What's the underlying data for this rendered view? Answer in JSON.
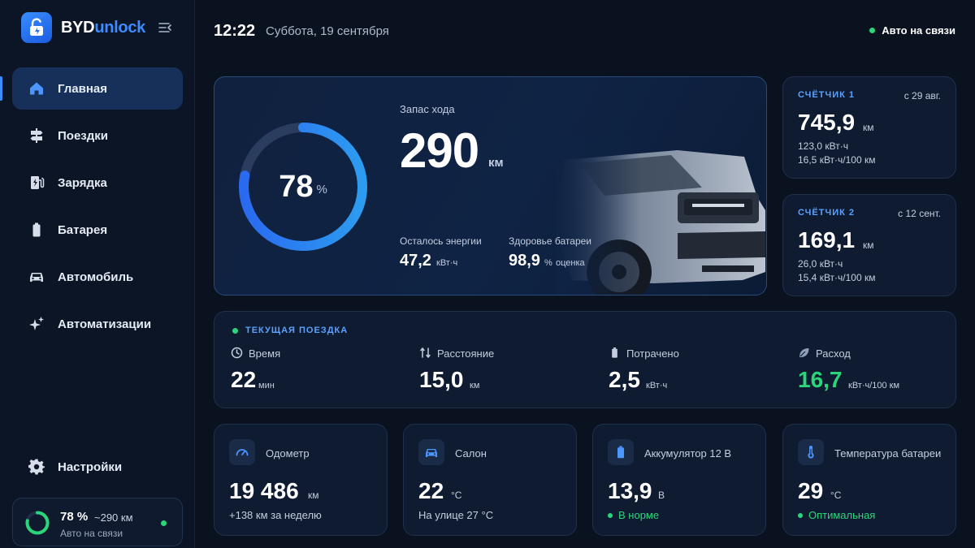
{
  "brand": {
    "name_part1": "BYD",
    "name_part2": "unlock"
  },
  "colors": {
    "accent": "#3d8bff",
    "ok": "#2bd67b",
    "background": "#0a1220"
  },
  "sidebar": {
    "items": [
      {
        "label": "Главная",
        "icon": "home-icon",
        "active": true
      },
      {
        "label": "Поездки",
        "icon": "signpost-icon"
      },
      {
        "label": "Зарядка",
        "icon": "charger-icon"
      },
      {
        "label": "Батарея",
        "icon": "battery-icon"
      },
      {
        "label": "Автомобиль",
        "icon": "car-icon"
      },
      {
        "label": "Автоматизации",
        "icon": "sparkles-icon"
      }
    ],
    "settings_label": "Настройки",
    "status": {
      "percent": "78 %",
      "range": "~290 км",
      "text": "Авто на связи",
      "level": 0.78
    }
  },
  "header": {
    "time": "12:22",
    "date": "Суббота, 19 сентября",
    "connection": "Авто на связи"
  },
  "hero": {
    "charge_value": "78",
    "charge_unit": "%",
    "charge_level": 0.78,
    "range_label": "Запас хода",
    "range_value": "290",
    "range_unit": "км",
    "energy_label": "Осталось энергии",
    "energy_value": "47,2",
    "energy_unit": "кВт·ч",
    "health_label": "Здоровье батареи",
    "health_value": "98,9",
    "health_unit": "%",
    "health_note": "оценка"
  },
  "counters": [
    {
      "title": "СЧЁТЧИК 1",
      "date": "с 29 авг.",
      "value": "745,9",
      "unit": "км",
      "energy": "123,0 кВт·ч",
      "consumption": "16,5 кВт·ч/100 км"
    },
    {
      "title": "СЧЁТЧИК 2",
      "date": "с 12 сент.",
      "value": "169,1",
      "unit": "км",
      "energy": "26,0 кВт·ч",
      "consumption": "15,4 кВт·ч/100 км"
    }
  ],
  "trip": {
    "title": "ТЕКУЩАЯ ПОЕЗДКА",
    "metrics": [
      {
        "label": "Время",
        "icon": "clock-icon",
        "value": "22",
        "unit": "мин"
      },
      {
        "label": "Расстояние",
        "icon": "route-icon",
        "value": "15,0",
        "unit": "км"
      },
      {
        "label": "Потрачено",
        "icon": "battery-small-icon",
        "value": "2,5",
        "unit": "кВт·ч"
      },
      {
        "label": "Расход",
        "icon": "leaf-icon",
        "value": "16,7",
        "unit": "кВт·ч/100 км"
      }
    ]
  },
  "tiles": [
    {
      "title": "Одометр",
      "icon": "gauge-icon",
      "value": "19 486",
      "unit": "км",
      "sub": "+138 км за неделю"
    },
    {
      "title": "Салон",
      "icon": "car-front-icon",
      "value": "22",
      "unit": "°C",
      "sub": "На улице 27 °C"
    },
    {
      "title": "Аккумулятор 12 В",
      "icon": "battery-12v-icon",
      "value": "13,9",
      "unit": "В",
      "sub": "В норме"
    },
    {
      "title": "Температура батареи",
      "icon": "thermometer-icon",
      "value": "29",
      "unit": "°C",
      "sub": "Оптимальная"
    }
  ]
}
